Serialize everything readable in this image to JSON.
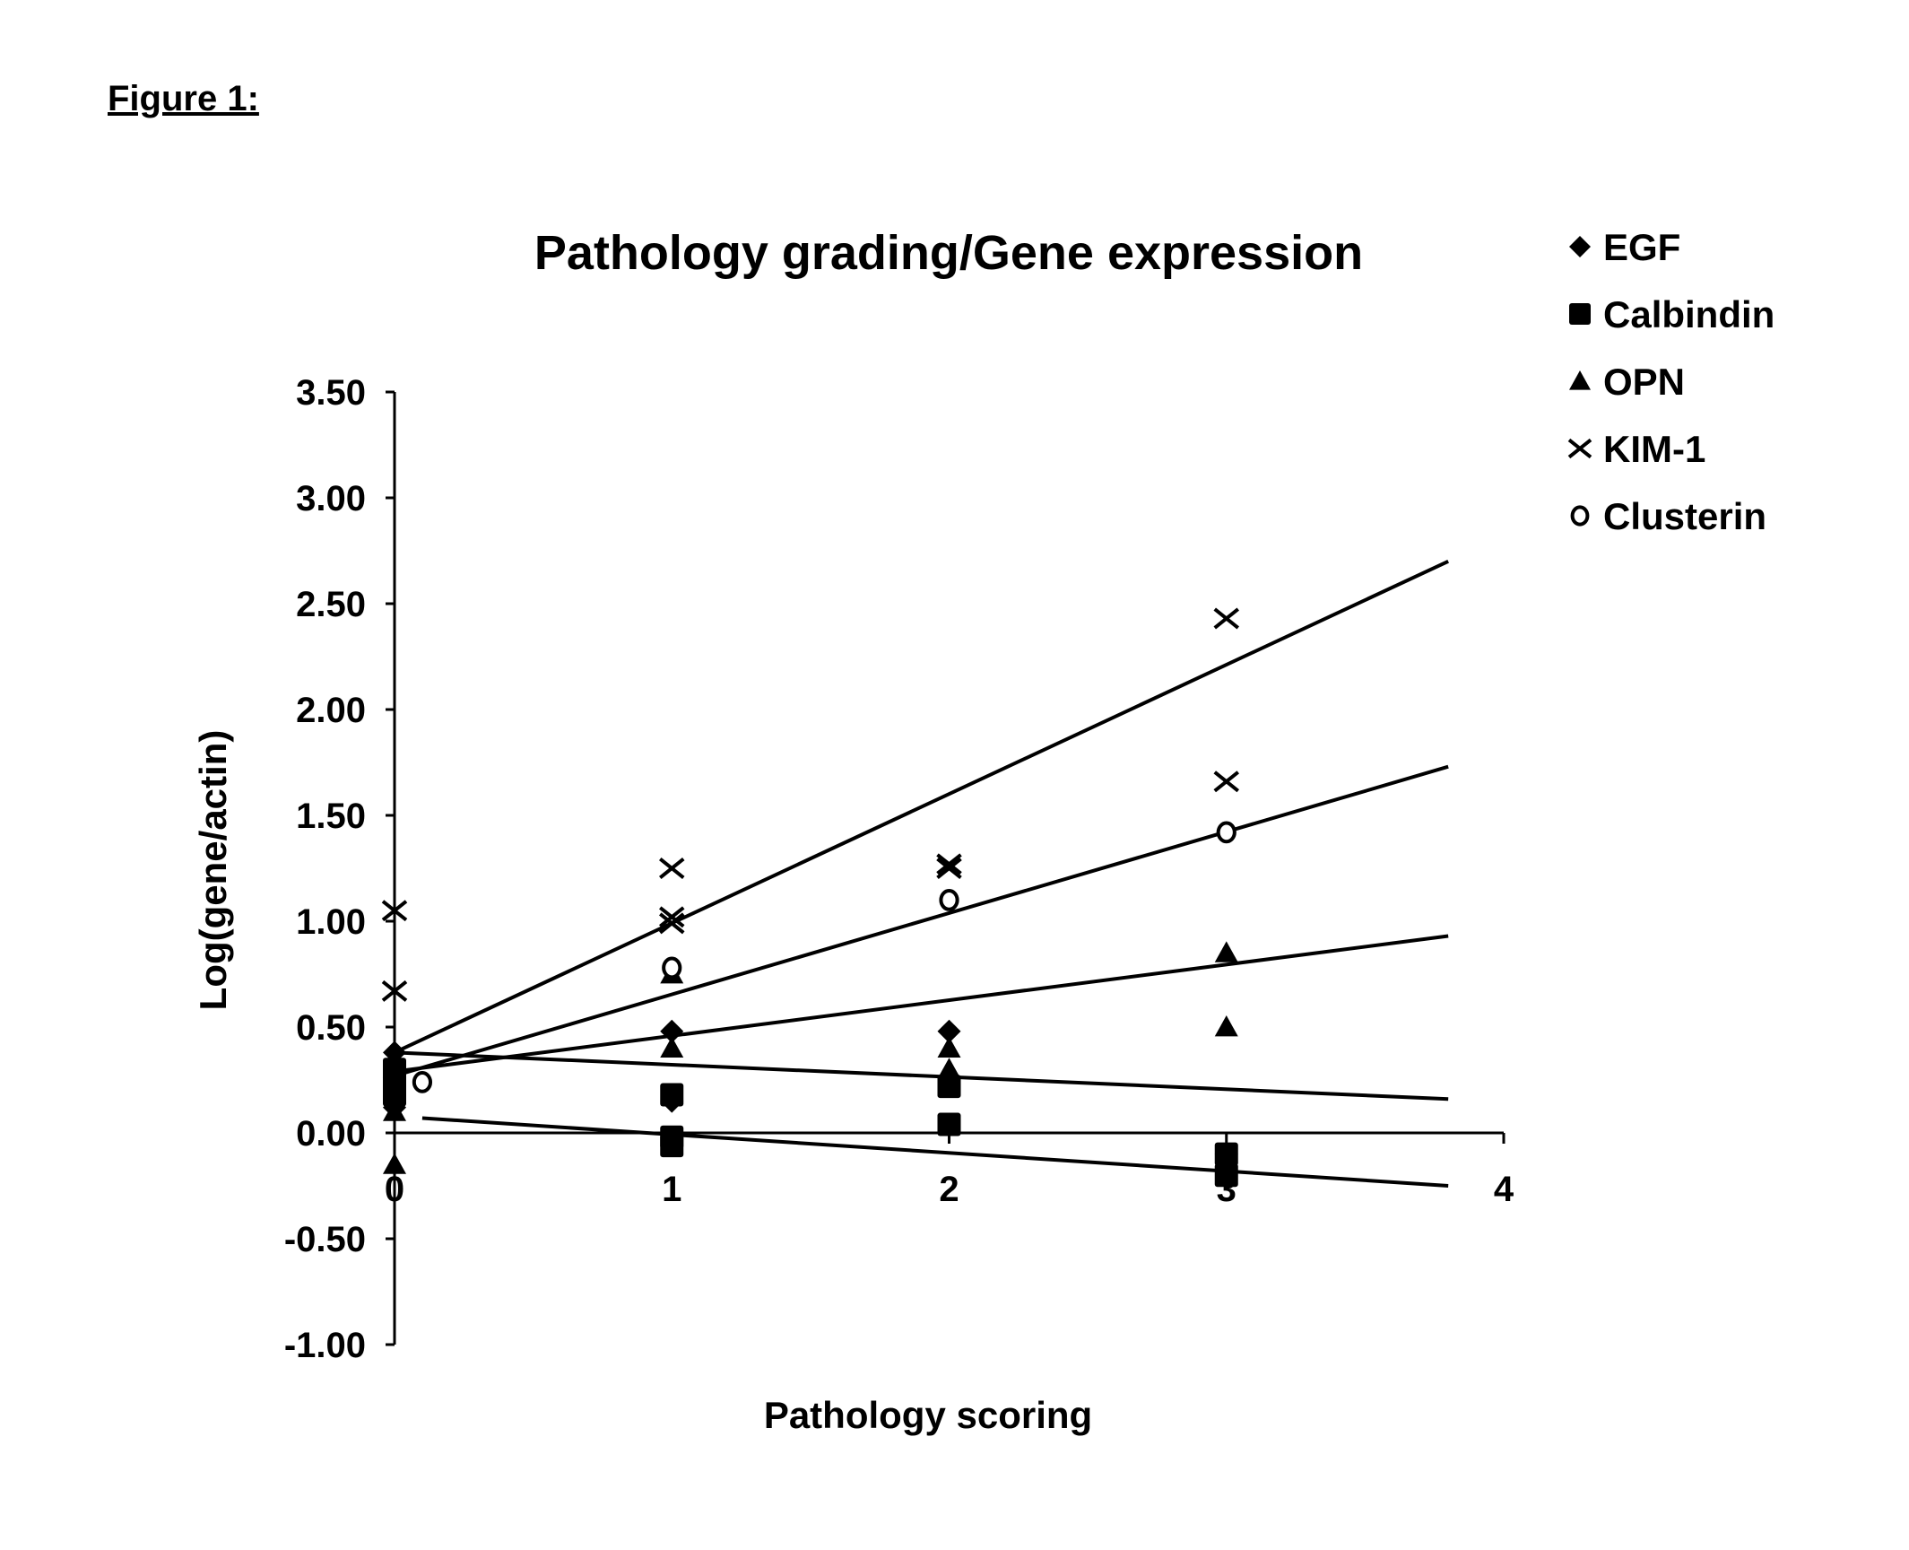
{
  "figure_label": "Figure 1:",
  "chart_data": {
    "type": "scatter",
    "title": "Pathology grading/Gene expression",
    "xlabel": "Pathology scoring",
    "ylabel": "Log(gene/actin)",
    "xlim": [
      0,
      4
    ],
    "ylim": [
      -1.0,
      3.5
    ],
    "xticks": [
      "0",
      "1",
      "2",
      "3",
      "4"
    ],
    "yticks": [
      "3.50",
      "3.00",
      "2.50",
      "2.00",
      "1.50",
      "1.00",
      "0.50",
      "0.00",
      "-0.50",
      "-1.00"
    ],
    "legend_position": "top-right",
    "series": [
      {
        "name": "EGF",
        "marker": "diamond",
        "points": [
          [
            0,
            0.38
          ],
          [
            0,
            0.12
          ],
          [
            1,
            0.48
          ],
          [
            1,
            0.15
          ],
          [
            2,
            0.48
          ],
          [
            3,
            -0.1
          ]
        ],
        "trend": [
          [
            0,
            0.38
          ],
          [
            3.8,
            0.16
          ]
        ]
      },
      {
        "name": "Calbindin",
        "marker": "square",
        "points": [
          [
            0,
            0.3
          ],
          [
            0,
            0.22
          ],
          [
            0,
            0.18
          ],
          [
            1,
            0.18
          ],
          [
            1,
            -0.02
          ],
          [
            1,
            -0.06
          ],
          [
            2,
            0.22
          ],
          [
            2,
            0.04
          ],
          [
            3,
            -0.1
          ],
          [
            3,
            -0.2
          ]
        ],
        "trend": [
          [
            0.1,
            0.07
          ],
          [
            3.8,
            -0.25
          ]
        ]
      },
      {
        "name": "OPN",
        "marker": "triangle",
        "points": [
          [
            0,
            0.1
          ],
          [
            0,
            -0.15
          ],
          [
            1,
            0.75
          ],
          [
            1,
            0.4
          ],
          [
            2,
            0.4
          ],
          [
            2,
            0.3
          ],
          [
            3,
            0.85
          ],
          [
            3,
            0.5
          ]
        ],
        "trend": [
          [
            0,
            0.29
          ],
          [
            3.8,
            0.93
          ]
        ]
      },
      {
        "name": "KIM-1",
        "marker": "x",
        "points": [
          [
            0,
            1.05
          ],
          [
            0,
            0.67
          ],
          [
            1,
            1.25
          ],
          [
            1,
            1.02
          ],
          [
            1,
            0.99
          ],
          [
            2,
            1.27
          ],
          [
            2,
            1.25
          ],
          [
            3,
            2.43
          ],
          [
            3,
            1.66
          ]
        ],
        "trend": [
          [
            0,
            0.38
          ],
          [
            3.8,
            2.7
          ]
        ]
      },
      {
        "name": "Clusterin",
        "marker": "circle",
        "points": [
          [
            0.1,
            0.24
          ],
          [
            1,
            0.78
          ],
          [
            2,
            1.1
          ],
          [
            3,
            1.42
          ]
        ],
        "trend": [
          [
            0,
            0.27
          ],
          [
            3.8,
            1.73
          ]
        ]
      }
    ]
  }
}
